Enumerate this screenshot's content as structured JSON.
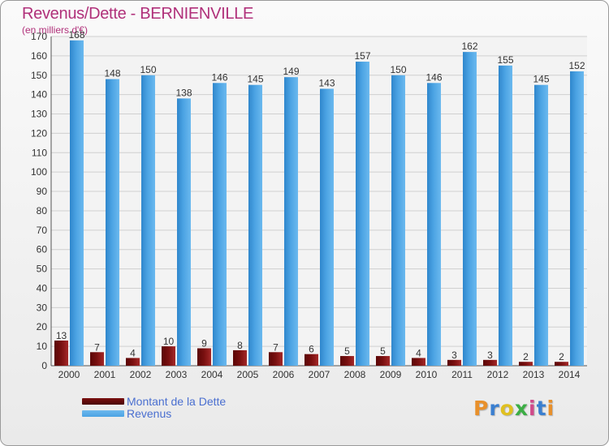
{
  "title": "Revenus/Dette - BERNIENVILLE",
  "subtitle": "(en milliers d'€)",
  "legend": {
    "debt_label": "Montant de la Dette",
    "revenue_label": "Revenus"
  },
  "logo": {
    "letters": [
      "P",
      "r",
      "o",
      "x",
      "i",
      "t",
      "i"
    ],
    "colors": [
      "#e8902b",
      "#3a7fd0",
      "#e0c020",
      "#3cae45",
      "#d04a8a",
      "#3a7fd0",
      "#e8902b"
    ]
  },
  "colors": {
    "debt": "#7a1010",
    "revenue": "#4ba3e3",
    "title": "#b0307a",
    "grid": "#d0d0d0"
  },
  "chart_data": {
    "type": "bar",
    "categories": [
      "2000",
      "2001",
      "2002",
      "2003",
      "2004",
      "2005",
      "2006",
      "2007",
      "2008",
      "2009",
      "2010",
      "2011",
      "2012",
      "2013",
      "2014"
    ],
    "series": [
      {
        "name": "Montant de la Dette",
        "values": [
          13,
          7,
          4,
          10,
          9,
          8,
          7,
          6,
          5,
          5,
          4,
          3,
          3,
          2,
          2
        ]
      },
      {
        "name": "Revenus",
        "values": [
          168,
          148,
          150,
          138,
          146,
          145,
          149,
          143,
          157,
          150,
          146,
          162,
          155,
          145,
          152
        ]
      }
    ],
    "yticks": [
      0,
      10,
      20,
      30,
      40,
      50,
      60,
      70,
      80,
      90,
      100,
      110,
      120,
      130,
      140,
      150,
      160,
      170
    ],
    "ylim": [
      0,
      170
    ],
    "grid": true,
    "legend_position": "bottom-left"
  }
}
